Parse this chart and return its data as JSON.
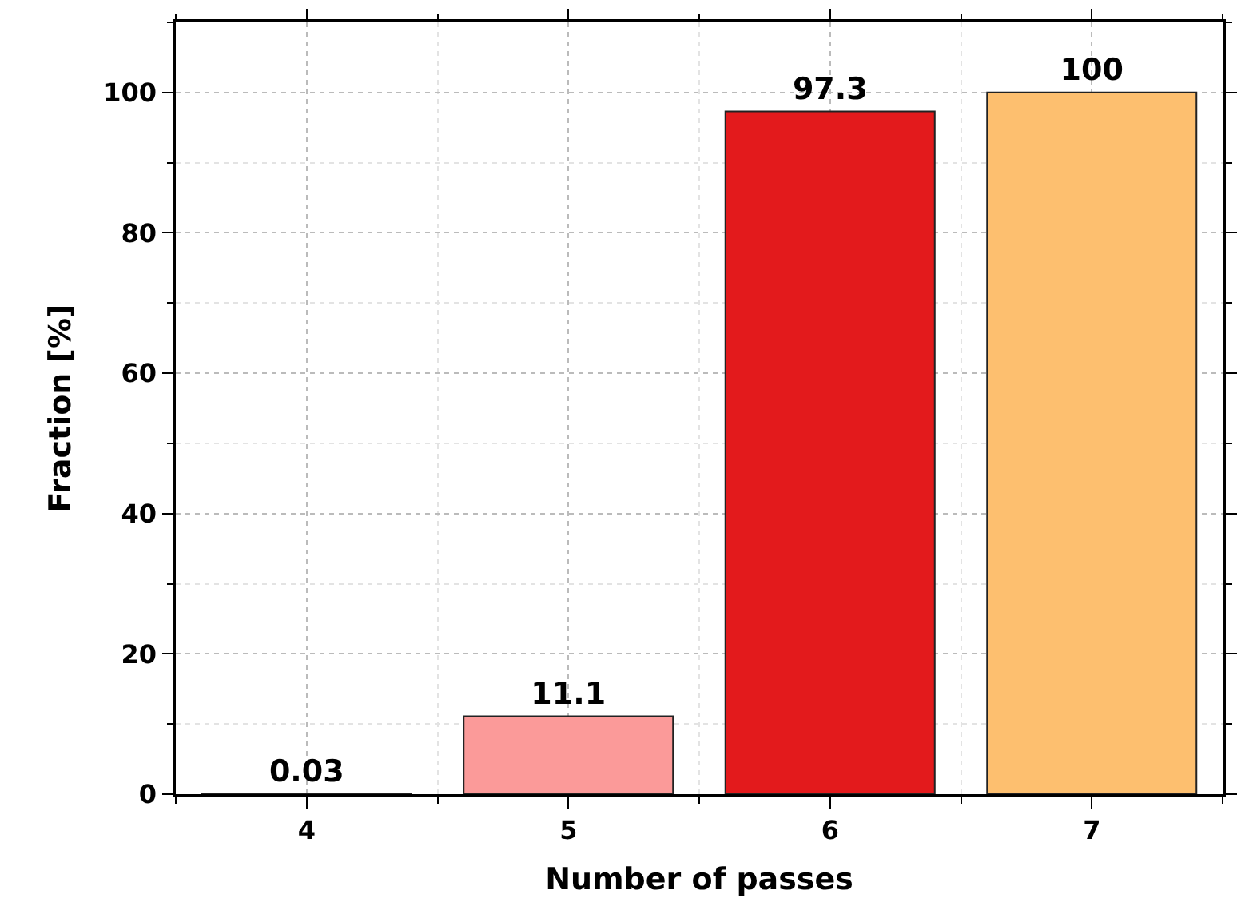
{
  "chart_data": {
    "type": "bar",
    "xlabel": "Number of passes",
    "ylabel": "Fraction [%]",
    "x": [
      4,
      5,
      6,
      7
    ],
    "values": [
      0.03,
      11.1,
      97.3,
      100
    ],
    "colors": [
      "#a6cee3",
      "#fb9a99",
      "#e31a1c",
      "#fdbf6f"
    ],
    "xlim": [
      3.5,
      7.5
    ],
    "xticks": [
      4,
      5,
      6,
      7
    ],
    "ylim": [
      0,
      110
    ],
    "yticks": [
      0,
      20,
      40,
      60,
      80,
      100
    ],
    "data_labels": true,
    "grid": true
  }
}
